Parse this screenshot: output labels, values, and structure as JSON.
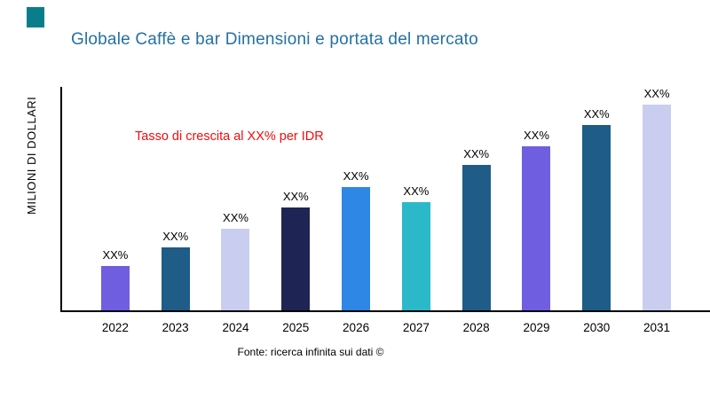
{
  "page": {
    "accent_square_color": "#087E8B",
    "title_color": "#2471A3",
    "annotation_color": "#F40B0B",
    "source": "Fonte: ricerca infinita sui dati ©"
  },
  "chart_data": {
    "type": "bar",
    "title": "Globale Caffè e bar Dimensioni e portata del mercato",
    "xlabel": "",
    "ylabel": "MILIONI DI DOLLARI",
    "annotation": "Tasso di crescita al XX% per IDR",
    "categories": [
      "2022",
      "2023",
      "2024",
      "2025",
      "2026",
      "2027",
      "2028",
      "2029",
      "2030",
      "2031"
    ],
    "values": [
      50,
      71,
      92,
      116,
      139,
      122,
      164,
      185,
      209,
      232
    ],
    "values_note": "relative bar heights in px; numeric axis values not shown in chart",
    "bar_labels": [
      "XX%",
      "XX%",
      "XX%",
      "XX%",
      "XX%",
      "XX%",
      "XX%",
      "XX%",
      "XX%",
      "XX%"
    ],
    "bar_colors": [
      "#6F5FE0",
      "#1F5C87",
      "#C9CDEF",
      "#1E2554",
      "#2E86E5",
      "#2BB9C9",
      "#1F5C87",
      "#6F5FE0",
      "#1F5C87",
      "#C9CDEF"
    ],
    "grid": false,
    "legend": false
  }
}
